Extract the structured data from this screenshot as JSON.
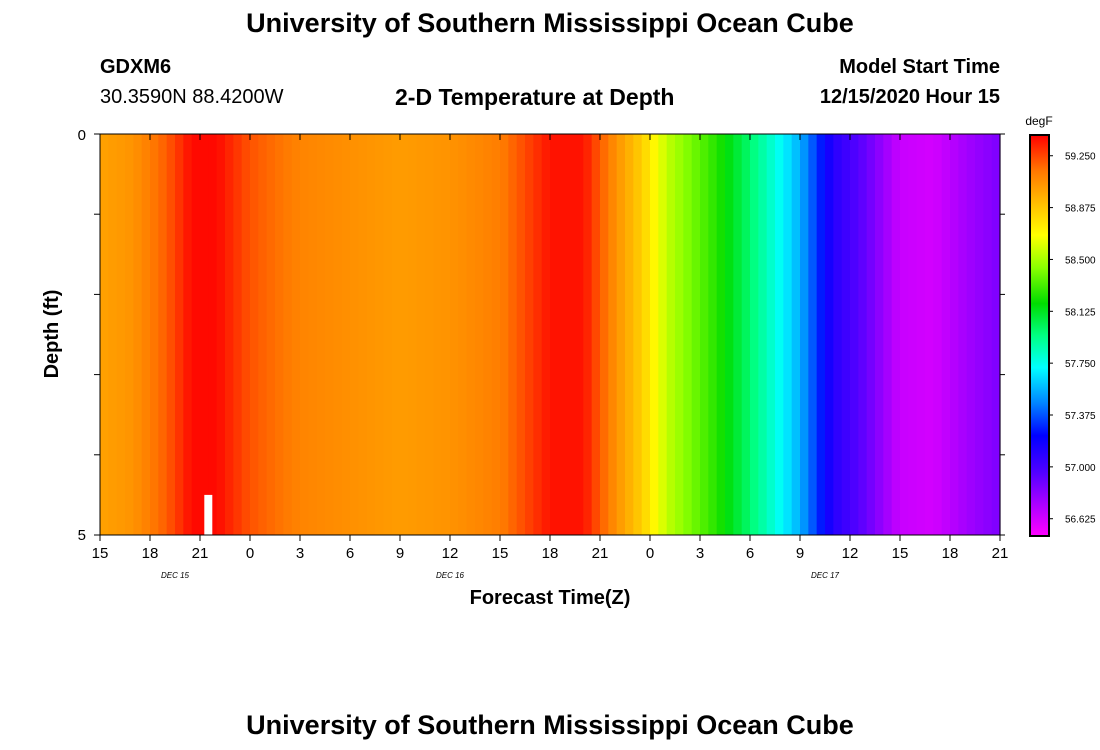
{
  "header": {
    "title": "University of Southern Mississippi Ocean Cube",
    "station": "GDXM6",
    "coords": "30.3590N 88.4200W",
    "plot_title": "2-D Temperature at Depth",
    "model_start_label": "Model Start Time",
    "model_start_value": "12/15/2020 Hour 15"
  },
  "footer": {
    "title": "University of Southern Mississippi Ocean Cube"
  },
  "chart_data": {
    "type": "heatmap",
    "xlabel": "Forecast Time(Z)",
    "ylabel": "Depth (ft)",
    "ylim": [
      0,
      5
    ],
    "y_ticks": [
      "0",
      "5"
    ],
    "x_tick_labels": [
      "15",
      "18",
      "21",
      "0",
      "3",
      "6",
      "9",
      "12",
      "15",
      "18",
      "21",
      "0",
      "3",
      "6",
      "9",
      "12",
      "15",
      "18",
      "21"
    ],
    "date_labels": [
      {
        "text": "DEC 15",
        "hours_from_start": 4.5
      },
      {
        "text": "DEC 16",
        "hours_from_start": 21
      },
      {
        "text": "DEC 17",
        "hours_from_start": 43.5
      }
    ],
    "x_start": "12/15/2020 15Z",
    "x_range_hours": [
      0,
      54
    ],
    "colorbar": {
      "unit": "degF",
      "range": [
        56.5,
        59.4
      ],
      "tick_values": [
        "59.250",
        "58.875",
        "58.500",
        "58.125",
        "57.750",
        "57.375",
        "57.000",
        "56.625"
      ]
    },
    "temperature_profile": [
      {
        "hour": 0,
        "value": 59.0
      },
      {
        "hour": 2,
        "value": 59.05
      },
      {
        "hour": 4,
        "value": 59.2
      },
      {
        "hour": 5.5,
        "value": 59.38
      },
      {
        "hour": 7,
        "value": 59.38
      },
      {
        "hour": 9,
        "value": 59.22
      },
      {
        "hour": 12,
        "value": 59.1
      },
      {
        "hour": 18,
        "value": 59.02
      },
      {
        "hour": 21,
        "value": 59.05
      },
      {
        "hour": 24,
        "value": 59.12
      },
      {
        "hour": 27,
        "value": 59.36
      },
      {
        "hour": 29,
        "value": 59.36
      },
      {
        "hour": 31,
        "value": 59.05
      },
      {
        "hour": 32.5,
        "value": 58.85
      },
      {
        "hour": 34,
        "value": 58.55
      },
      {
        "hour": 37,
        "value": 58.25
      },
      {
        "hour": 40,
        "value": 57.85
      },
      {
        "hour": 42,
        "value": 57.55
      },
      {
        "hour": 44,
        "value": 57.1
      },
      {
        "hour": 46,
        "value": 56.9
      },
      {
        "hour": 48,
        "value": 56.65
      },
      {
        "hour": 50,
        "value": 56.62
      },
      {
        "hour": 52,
        "value": 56.75
      },
      {
        "hour": 54,
        "value": 56.85
      }
    ],
    "marker": {
      "hour": 6.5,
      "depth_from": 4.5,
      "depth_to": 5,
      "color": "#ffffff"
    }
  }
}
